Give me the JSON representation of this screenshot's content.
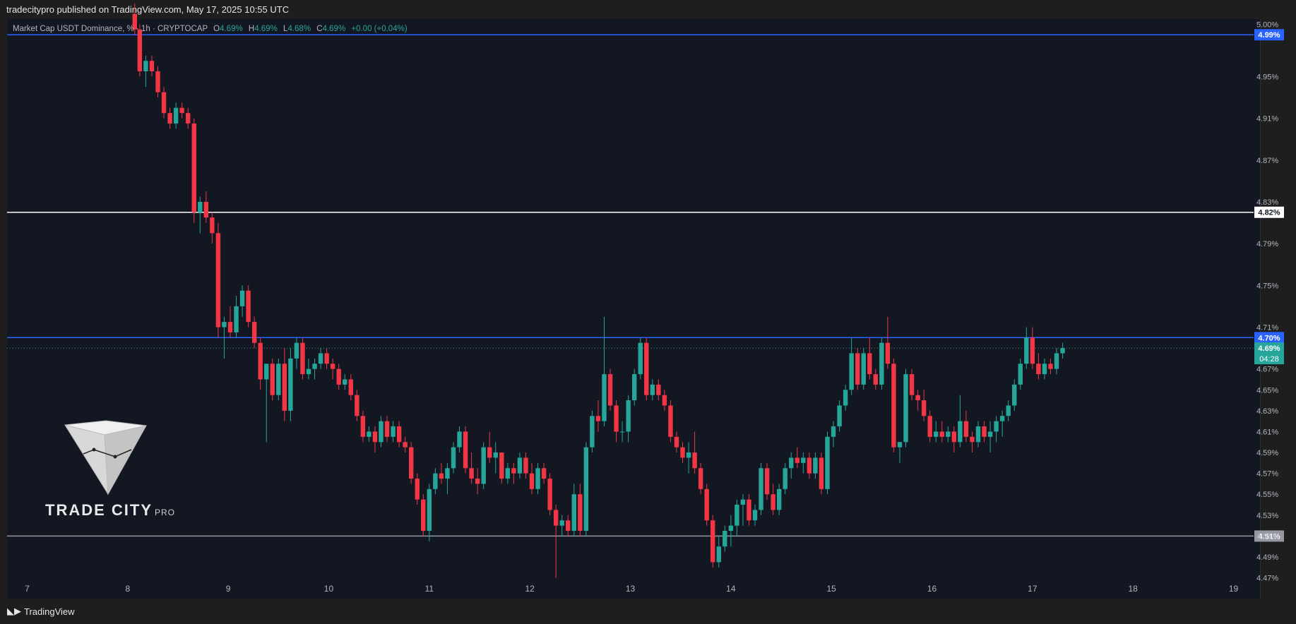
{
  "header": {
    "publisher_line": "tradecitypro published on TradingView.com, May 17, 2025 10:55 UTC"
  },
  "legend": {
    "symbol": "Market Cap USDT Dominance, %",
    "interval": "1h",
    "exchange": "CRYPTOCAP",
    "open_label": "O",
    "open": "4.69%",
    "high_label": "H",
    "high": "4.69%",
    "low_label": "L",
    "low": "4.68%",
    "close_label": "C",
    "close": "4.69%",
    "change": "+0.00 (+0.04%)"
  },
  "brand": {
    "name": "TRADE CITY",
    "suffix": "PRO"
  },
  "footer": {
    "logo_text": "TradingView"
  },
  "colors": {
    "up": "#26a69a",
    "down": "#f23645",
    "bg": "#131722",
    "blue_line": "#2962ff"
  },
  "chart_data": {
    "type": "candlestick",
    "y_axis_ticks": [
      "5.00%",
      "4.95%",
      "4.91%",
      "4.87%",
      "4.83%",
      "4.79%",
      "4.75%",
      "4.71%",
      "4.67%",
      "4.65%",
      "4.63%",
      "4.61%",
      "4.59%",
      "4.57%",
      "4.55%",
      "4.53%",
      "4.51%",
      "4.49%",
      "4.47%"
    ],
    "x_axis_ticks": [
      "7",
      "8",
      "9",
      "10",
      "11",
      "12",
      "13",
      "14",
      "15",
      "16",
      "17",
      "18",
      "19"
    ],
    "ylim": [
      4.465,
      5.005
    ],
    "xlim": [
      6.8,
      19.2
    ],
    "horizontal_levels": [
      {
        "value": 4.99,
        "label": "4.99%",
        "color": "#2962ff"
      },
      {
        "value": 4.82,
        "label": "4.82%",
        "color": "#ffffff"
      },
      {
        "value": 4.7,
        "label": "4.70%",
        "color": "#2962ff"
      },
      {
        "value": 4.51,
        "label": "4.51%",
        "color": "#9598a1"
      }
    ],
    "current_price": {
      "value": 4.69,
      "label": "4.69%",
      "countdown": "04:28"
    },
    "candles": [
      [
        8.07,
        5.01,
        5.02,
        4.99,
        4.995
      ],
      [
        8.12,
        4.995,
        5.0,
        4.95,
        4.955
      ],
      [
        8.18,
        4.955,
        4.97,
        4.94,
        4.965
      ],
      [
        8.24,
        4.965,
        4.97,
        4.95,
        4.955
      ],
      [
        8.3,
        4.955,
        4.96,
        4.93,
        4.935
      ],
      [
        8.36,
        4.935,
        4.94,
        4.91,
        4.915
      ],
      [
        8.42,
        4.915,
        4.92,
        4.9,
        4.905
      ],
      [
        8.48,
        4.905,
        4.925,
        4.9,
        4.92
      ],
      [
        8.54,
        4.92,
        4.925,
        4.91,
        4.915
      ],
      [
        8.6,
        4.915,
        4.92,
        4.9,
        4.905
      ],
      [
        8.66,
        4.905,
        4.91,
        4.81,
        4.82
      ],
      [
        8.72,
        4.82,
        4.835,
        4.8,
        4.83
      ],
      [
        8.78,
        4.83,
        4.84,
        4.81,
        4.815
      ],
      [
        8.84,
        4.815,
        4.82,
        4.79,
        4.8
      ],
      [
        8.9,
        4.8,
        4.81,
        4.7,
        4.71
      ],
      [
        8.96,
        4.71,
        4.72,
        4.68,
        4.715
      ],
      [
        9.02,
        4.715,
        4.73,
        4.7,
        4.705
      ],
      [
        9.08,
        4.705,
        4.74,
        4.7,
        4.73
      ],
      [
        9.14,
        4.73,
        4.75,
        4.72,
        4.745
      ],
      [
        9.2,
        4.745,
        4.75,
        4.71,
        4.715
      ],
      [
        9.26,
        4.715,
        4.72,
        4.69,
        4.695
      ],
      [
        9.32,
        4.695,
        4.7,
        4.65,
        4.66
      ],
      [
        9.38,
        4.66,
        4.67,
        4.6,
        4.675
      ],
      [
        9.44,
        4.675,
        4.68,
        4.64,
        4.645
      ],
      [
        9.5,
        4.645,
        4.68,
        4.64,
        4.675
      ],
      [
        9.56,
        4.675,
        4.69,
        4.62,
        4.63
      ],
      [
        9.62,
        4.63,
        4.69,
        4.62,
        4.68
      ],
      [
        9.68,
        4.68,
        4.7,
        4.67,
        4.695
      ],
      [
        9.74,
        4.695,
        4.7,
        4.66,
        4.665
      ],
      [
        9.8,
        4.665,
        4.68,
        4.66,
        4.67
      ],
      [
        9.86,
        4.67,
        4.68,
        4.66,
        4.675
      ],
      [
        9.92,
        4.675,
        4.69,
        4.67,
        4.685
      ],
      [
        9.98,
        4.685,
        4.69,
        4.67,
        4.675
      ],
      [
        10.04,
        4.675,
        4.68,
        4.66,
        4.67
      ],
      [
        10.1,
        4.67,
        4.675,
        4.65,
        4.655
      ],
      [
        10.16,
        4.655,
        4.665,
        4.65,
        4.66
      ],
      [
        10.22,
        4.66,
        4.665,
        4.64,
        4.645
      ],
      [
        10.28,
        4.645,
        4.65,
        4.62,
        4.625
      ],
      [
        10.34,
        4.625,
        4.63,
        4.6,
        4.605
      ],
      [
        10.4,
        4.605,
        4.615,
        4.6,
        4.61
      ],
      [
        10.46,
        4.61,
        4.615,
        4.59,
        4.6
      ],
      [
        10.52,
        4.6,
        4.625,
        4.595,
        4.62
      ],
      [
        10.58,
        4.62,
        4.625,
        4.6,
        4.605
      ],
      [
        10.64,
        4.605,
        4.62,
        4.6,
        4.615
      ],
      [
        10.7,
        4.615,
        4.62,
        4.595,
        4.6
      ],
      [
        10.76,
        4.6,
        4.605,
        4.59,
        4.595
      ],
      [
        10.82,
        4.595,
        4.6,
        4.56,
        4.565
      ],
      [
        10.88,
        4.565,
        4.57,
        4.54,
        4.545
      ],
      [
        10.94,
        4.545,
        4.55,
        4.51,
        4.515
      ],
      [
        11.0,
        4.515,
        4.56,
        4.505,
        4.555
      ],
      [
        11.06,
        4.555,
        4.575,
        4.55,
        4.57
      ],
      [
        11.12,
        4.57,
        4.58,
        4.56,
        4.565
      ],
      [
        11.18,
        4.565,
        4.58,
        4.55,
        4.575
      ],
      [
        11.24,
        4.575,
        4.6,
        4.57,
        4.595
      ],
      [
        11.3,
        4.595,
        4.615,
        4.59,
        4.61
      ],
      [
        11.36,
        4.61,
        4.615,
        4.57,
        4.575
      ],
      [
        11.42,
        4.575,
        4.59,
        4.56,
        4.565
      ],
      [
        11.48,
        4.565,
        4.575,
        4.55,
        4.56
      ],
      [
        11.54,
        4.56,
        4.6,
        4.555,
        4.595
      ],
      [
        11.6,
        4.595,
        4.61,
        4.58,
        4.585
      ],
      [
        11.66,
        4.585,
        4.6,
        4.57,
        4.59
      ],
      [
        11.72,
        4.59,
        4.59,
        4.56,
        4.565
      ],
      [
        11.78,
        4.565,
        4.58,
        4.56,
        4.575
      ],
      [
        11.84,
        4.575,
        4.58,
        4.56,
        4.57
      ],
      [
        11.9,
        4.57,
        4.59,
        4.565,
        4.585
      ],
      [
        11.96,
        4.585,
        4.59,
        4.565,
        4.57
      ],
      [
        12.02,
        4.57,
        4.58,
        4.55,
        4.555
      ],
      [
        12.08,
        4.555,
        4.58,
        4.55,
        4.575
      ],
      [
        12.14,
        4.575,
        4.58,
        4.56,
        4.565
      ],
      [
        12.2,
        4.565,
        4.57,
        4.53,
        4.535
      ],
      [
        12.26,
        4.535,
        4.54,
        4.47,
        4.52
      ],
      [
        12.32,
        4.52,
        4.53,
        4.51,
        4.525
      ],
      [
        12.38,
        4.525,
        4.53,
        4.51,
        4.515
      ],
      [
        12.44,
        4.515,
        4.56,
        4.51,
        4.55
      ],
      [
        12.5,
        4.55,
        4.56,
        4.51,
        4.515
      ],
      [
        12.56,
        4.515,
        4.6,
        4.51,
        4.595
      ],
      [
        12.62,
        4.595,
        4.63,
        4.59,
        4.625
      ],
      [
        12.68,
        4.625,
        4.64,
        4.61,
        4.62
      ],
      [
        12.74,
        4.62,
        4.72,
        4.615,
        4.665
      ],
      [
        12.8,
        4.665,
        4.67,
        4.63,
        4.635
      ],
      [
        12.86,
        4.635,
        4.64,
        4.6,
        4.61
      ],
      [
        12.92,
        4.61,
        4.62,
        4.6,
        4.61
      ],
      [
        12.98,
        4.61,
        4.645,
        4.6,
        4.64
      ],
      [
        13.04,
        4.64,
        4.67,
        4.635,
        4.665
      ],
      [
        13.1,
        4.665,
        4.7,
        4.66,
        4.695
      ],
      [
        13.16,
        4.695,
        4.7,
        4.64,
        4.645
      ],
      [
        13.22,
        4.645,
        4.66,
        4.64,
        4.655
      ],
      [
        13.28,
        4.655,
        4.66,
        4.64,
        4.645
      ],
      [
        13.34,
        4.645,
        4.65,
        4.63,
        4.635
      ],
      [
        13.4,
        4.635,
        4.64,
        4.6,
        4.605
      ],
      [
        13.46,
        4.605,
        4.61,
        4.59,
        4.595
      ],
      [
        13.52,
        4.595,
        4.6,
        4.58,
        4.585
      ],
      [
        13.58,
        4.585,
        4.6,
        4.57,
        4.59
      ],
      [
        13.64,
        4.59,
        4.61,
        4.57,
        4.575
      ],
      [
        13.7,
        4.575,
        4.58,
        4.55,
        4.555
      ],
      [
        13.76,
        4.555,
        4.56,
        4.52,
        4.525
      ],
      [
        13.82,
        4.525,
        4.53,
        4.48,
        4.485
      ],
      [
        13.88,
        4.485,
        4.51,
        4.48,
        4.5
      ],
      [
        13.94,
        4.5,
        4.52,
        4.495,
        4.515
      ],
      [
        14.0,
        4.515,
        4.53,
        4.5,
        4.52
      ],
      [
        14.06,
        4.52,
        4.545,
        4.51,
        4.54
      ],
      [
        14.12,
        4.54,
        4.55,
        4.52,
        4.545
      ],
      [
        14.18,
        4.545,
        4.55,
        4.52,
        4.525
      ],
      [
        14.24,
        4.525,
        4.54,
        4.52,
        4.535
      ],
      [
        14.3,
        4.535,
        4.58,
        4.53,
        4.575
      ],
      [
        14.36,
        4.575,
        4.58,
        4.545,
        4.55
      ],
      [
        14.42,
        4.55,
        4.56,
        4.53,
        4.535
      ],
      [
        14.48,
        4.535,
        4.56,
        4.53,
        4.555
      ],
      [
        14.54,
        4.555,
        4.58,
        4.55,
        4.575
      ],
      [
        14.6,
        4.575,
        4.59,
        4.565,
        4.585
      ],
      [
        14.66,
        4.585,
        4.595,
        4.575,
        4.58
      ],
      [
        14.72,
        4.58,
        4.59,
        4.57,
        4.585
      ],
      [
        14.78,
        4.585,
        4.59,
        4.565,
        4.57
      ],
      [
        14.84,
        4.57,
        4.59,
        4.565,
        4.585
      ],
      [
        14.9,
        4.585,
        4.59,
        4.55,
        4.555
      ],
      [
        14.96,
        4.555,
        4.61,
        4.55,
        4.605
      ],
      [
        15.02,
        4.605,
        4.62,
        4.595,
        4.615
      ],
      [
        15.08,
        4.615,
        4.64,
        4.61,
        4.635
      ],
      [
        15.14,
        4.635,
        4.655,
        4.63,
        4.65
      ],
      [
        15.2,
        4.65,
        4.7,
        4.645,
        4.685
      ],
      [
        15.26,
        4.685,
        4.69,
        4.65,
        4.655
      ],
      [
        15.32,
        4.655,
        4.69,
        4.65,
        4.685
      ],
      [
        15.38,
        4.685,
        4.7,
        4.66,
        4.665
      ],
      [
        15.44,
        4.665,
        4.67,
        4.65,
        4.655
      ],
      [
        15.5,
        4.655,
        4.7,
        4.65,
        4.695
      ],
      [
        15.56,
        4.695,
        4.72,
        4.67,
        4.675
      ],
      [
        15.62,
        4.675,
        4.68,
        4.59,
        4.595
      ],
      [
        15.68,
        4.595,
        4.6,
        4.58,
        4.6
      ],
      [
        15.74,
        4.6,
        4.67,
        4.595,
        4.665
      ],
      [
        15.8,
        4.665,
        4.67,
        4.64,
        4.645
      ],
      [
        15.86,
        4.645,
        4.65,
        4.63,
        4.64
      ],
      [
        15.92,
        4.64,
        4.65,
        4.62,
        4.625
      ],
      [
        15.98,
        4.625,
        4.63,
        4.6,
        4.605
      ],
      [
        16.04,
        4.605,
        4.62,
        4.6,
        4.61
      ],
      [
        16.1,
        4.61,
        4.62,
        4.6,
        4.605
      ],
      [
        16.16,
        4.605,
        4.615,
        4.6,
        4.61
      ],
      [
        16.22,
        4.61,
        4.615,
        4.59,
        4.6
      ],
      [
        16.28,
        4.6,
        4.645,
        4.595,
        4.62
      ],
      [
        16.34,
        4.62,
        4.63,
        4.6,
        4.605
      ],
      [
        16.4,
        4.605,
        4.61,
        4.59,
        4.6
      ],
      [
        16.46,
        4.6,
        4.62,
        4.595,
        4.615
      ],
      [
        16.52,
        4.615,
        4.62,
        4.6,
        4.605
      ],
      [
        16.58,
        4.605,
        4.62,
        4.59,
        4.61
      ],
      [
        16.64,
        4.61,
        4.625,
        4.6,
        4.62
      ],
      [
        16.7,
        4.62,
        4.63,
        4.605,
        4.625
      ],
      [
        16.76,
        4.625,
        4.64,
        4.62,
        4.635
      ],
      [
        16.82,
        4.635,
        4.66,
        4.63,
        4.655
      ],
      [
        16.88,
        4.655,
        4.68,
        4.65,
        4.675
      ],
      [
        16.94,
        4.675,
        4.71,
        4.67,
        4.7
      ],
      [
        17.0,
        4.7,
        4.71,
        4.67,
        4.675
      ],
      [
        17.06,
        4.675,
        4.685,
        4.66,
        4.665
      ],
      [
        17.12,
        4.665,
        4.68,
        4.66,
        4.675
      ],
      [
        17.18,
        4.675,
        4.68,
        4.665,
        4.67
      ],
      [
        17.24,
        4.67,
        4.69,
        4.665,
        4.685
      ],
      [
        17.3,
        4.685,
        4.695,
        4.68,
        4.69
      ]
    ]
  }
}
